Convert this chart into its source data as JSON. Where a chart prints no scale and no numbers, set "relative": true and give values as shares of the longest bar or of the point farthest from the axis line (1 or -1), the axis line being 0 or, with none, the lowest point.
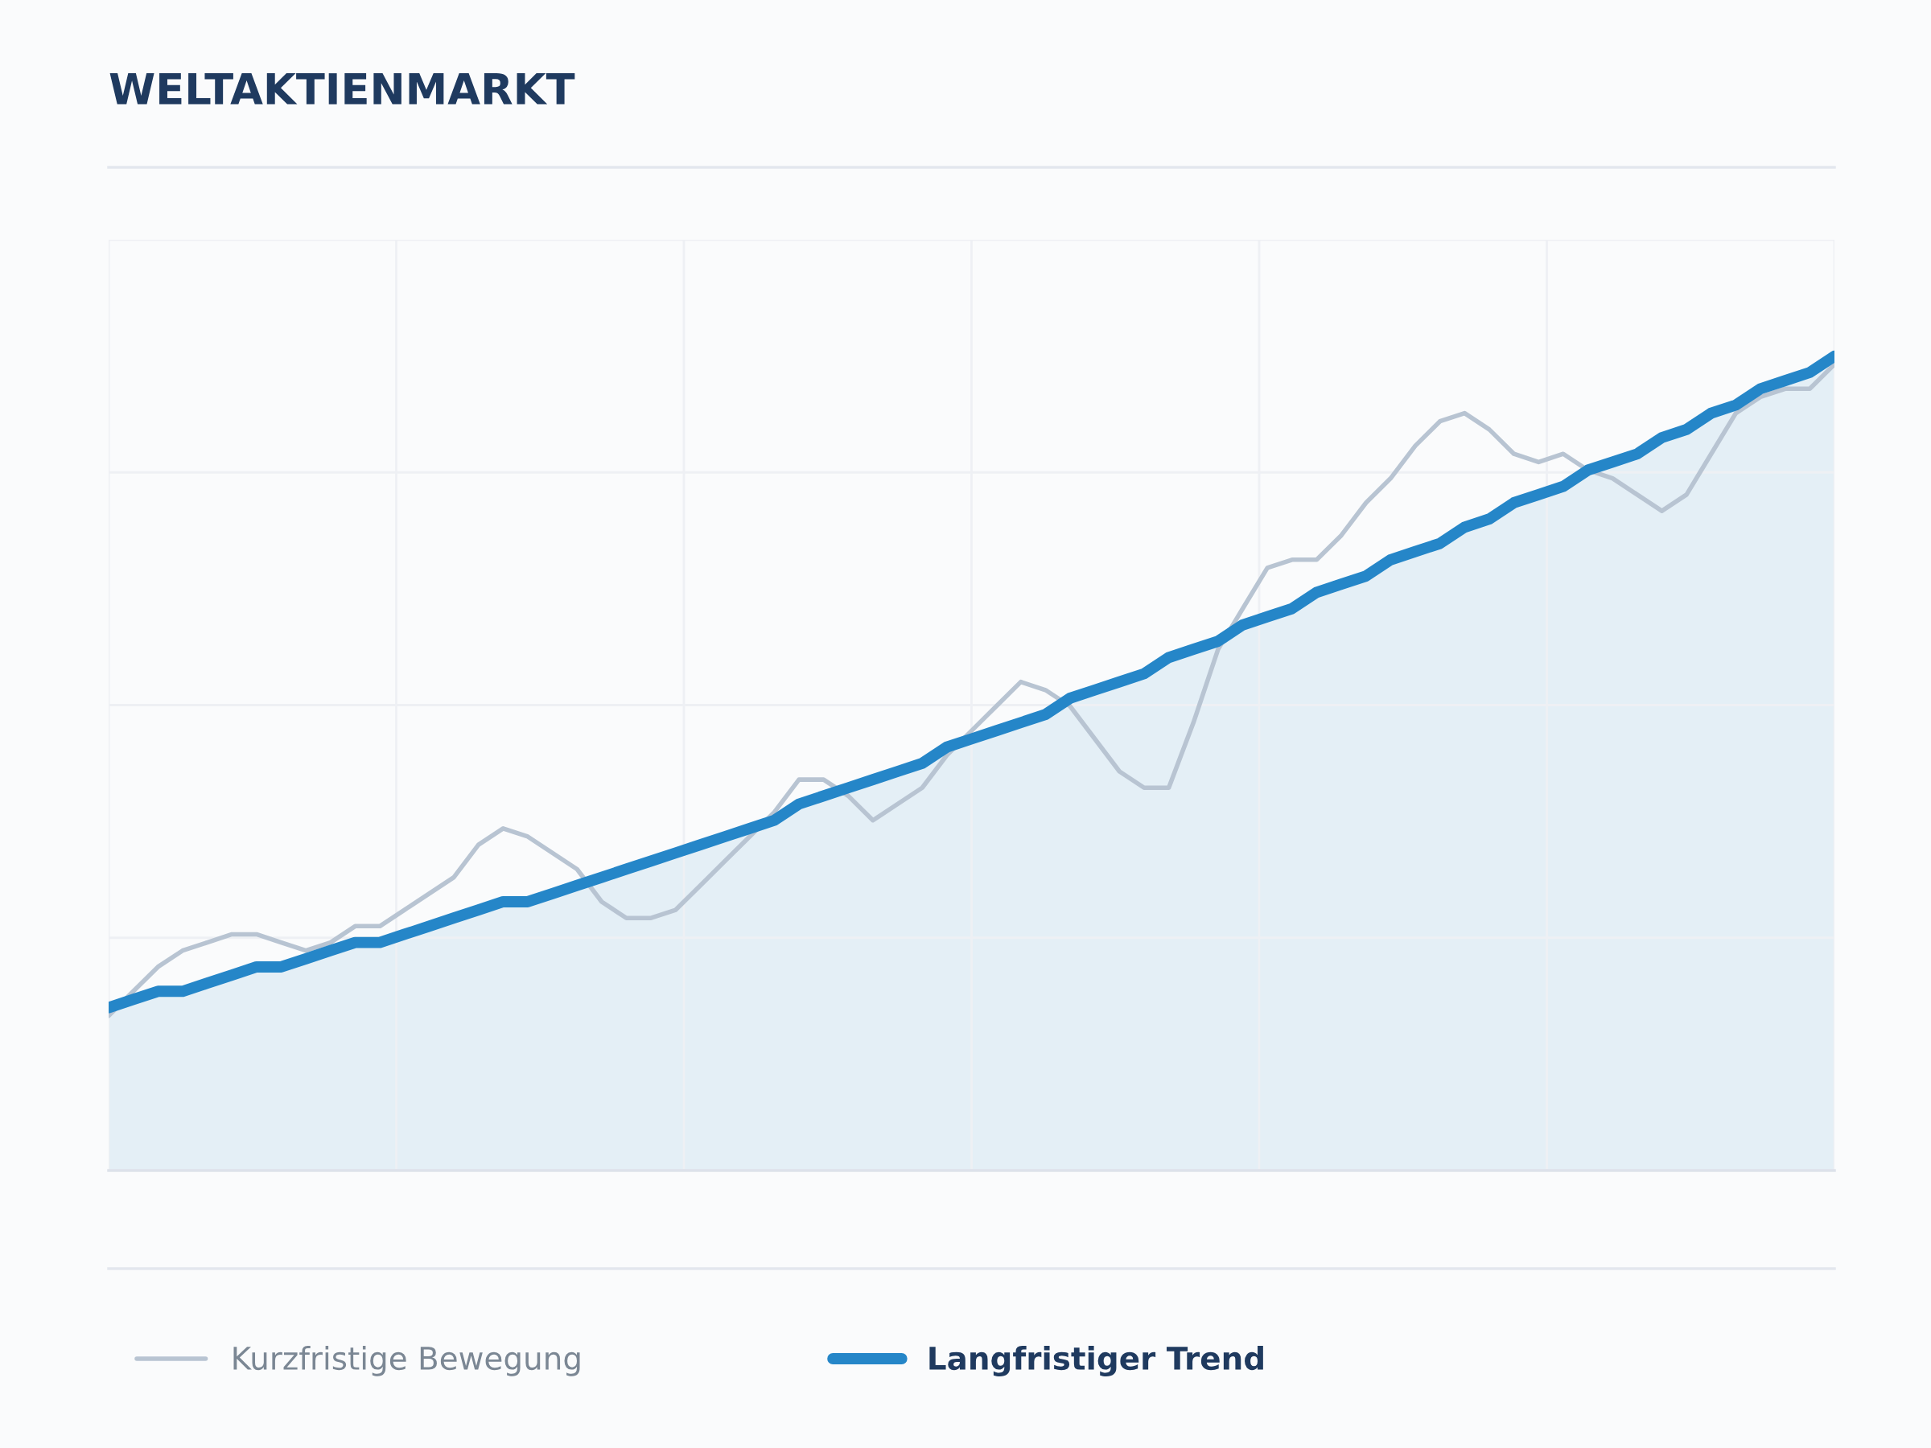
{
  "chart_data": {
    "type": "line",
    "title": "WELTAKTIENMARKT",
    "relative": true,
    "grid": true,
    "legend": "bottom",
    "tick_labels": false,
    "categories": [
      null,
      null,
      null,
      null,
      null,
      null,
      null,
      null,
      null,
      null,
      null,
      null,
      null,
      null,
      null,
      null,
      null,
      null,
      null,
      null,
      null,
      null,
      null,
      null,
      null,
      null,
      null,
      null,
      null,
      null,
      null,
      null,
      null,
      null,
      null,
      null,
      null,
      null,
      null,
      null,
      null,
      null,
      null,
      null,
      null,
      null,
      null,
      null,
      null,
      null,
      null,
      null,
      null,
      null,
      null,
      null,
      null,
      null,
      null,
      null,
      null,
      null,
      null,
      null,
      null,
      null,
      null,
      null,
      null,
      null,
      null
    ],
    "series": [
      {
        "name": "Kurzfristige Bewegung",
        "color": "#b8c4d2",
        "values": [
          0.19,
          0.22,
          0.25,
          0.27,
          0.28,
          0.29,
          0.29,
          0.28,
          0.27,
          0.28,
          0.3,
          0.3,
          0.32,
          0.34,
          0.36,
          0.4,
          0.42,
          0.41,
          0.39,
          0.37,
          0.33,
          0.31,
          0.31,
          0.32,
          0.35,
          0.38,
          0.41,
          0.44,
          0.48,
          0.48,
          0.46,
          0.43,
          0.45,
          0.47,
          0.51,
          0.54,
          0.57,
          0.6,
          0.59,
          0.57,
          0.53,
          0.49,
          0.47,
          0.47,
          0.55,
          0.64,
          0.69,
          0.74,
          0.75,
          0.75,
          0.78,
          0.82,
          0.85,
          0.89,
          0.92,
          0.93,
          0.91,
          0.88,
          0.87,
          0.88,
          0.86,
          0.85,
          0.83,
          0.81,
          0.83,
          0.88,
          0.93,
          0.95,
          0.96,
          0.96,
          0.99
        ]
      },
      {
        "name": "Langfristiger Trend",
        "type": "area",
        "color": "#2586c8",
        "values": [
          0.2,
          0.21,
          0.22,
          0.22,
          0.23,
          0.24,
          0.25,
          0.25,
          0.26,
          0.27,
          0.28,
          0.28,
          0.29,
          0.3,
          0.31,
          0.32,
          0.33,
          0.33,
          0.34,
          0.35,
          0.36,
          0.37,
          0.38,
          0.39,
          0.4,
          0.41,
          0.42,
          0.43,
          0.45,
          0.46,
          0.47,
          0.48,
          0.49,
          0.5,
          0.52,
          0.53,
          0.54,
          0.55,
          0.56,
          0.58,
          0.59,
          0.6,
          0.61,
          0.63,
          0.64,
          0.65,
          0.67,
          0.68,
          0.69,
          0.71,
          0.72,
          0.73,
          0.75,
          0.76,
          0.77,
          0.79,
          0.8,
          0.82,
          0.83,
          0.84,
          0.86,
          0.87,
          0.88,
          0.9,
          0.91,
          0.93,
          0.94,
          0.96,
          0.97,
          0.98,
          1
        ]
      }
    ]
  }
}
